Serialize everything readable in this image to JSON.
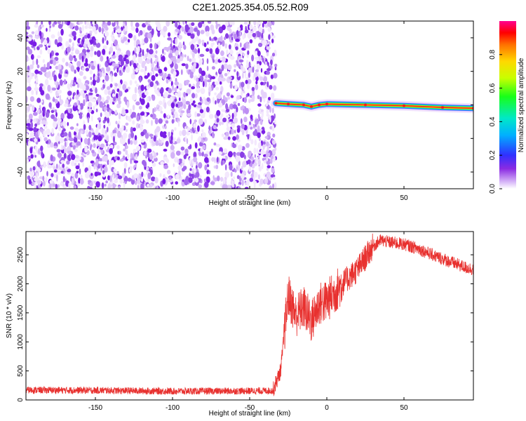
{
  "title": "C2E1.2025.354.05.52.R09",
  "chart_data": [
    {
      "type": "heatmap",
      "xlabel": "Height of straight line (km)",
      "ylabel": "Frequency (Hz)",
      "xlim": [
        -195,
        95
      ],
      "ylim": [
        -50,
        50
      ],
      "x_ticks": [
        -150,
        -100,
        -50,
        0,
        50
      ],
      "y_ticks": [
        -40,
        -20,
        0,
        20,
        40
      ],
      "noise_region_x": [
        -195,
        -33
      ],
      "signal_trace": [
        {
          "x": -33,
          "freq": 1.0
        },
        {
          "x": -25,
          "freq": 0.5
        },
        {
          "x": -15,
          "freq": 0.0
        },
        {
          "x": -10,
          "freq": -1.0
        },
        {
          "x": -5,
          "freq": 0.0
        },
        {
          "x": 0,
          "freq": 0.5
        },
        {
          "x": 25,
          "freq": 0.0
        },
        {
          "x": 50,
          "freq": -0.5
        },
        {
          "x": 75,
          "freq": -1.5
        },
        {
          "x": 95,
          "freq": -2.0
        }
      ],
      "colorbar": {
        "label": "Normalized spectral amplitude",
        "range": [
          0,
          1
        ],
        "ticks": [
          "0.0",
          "0.2",
          "0.4",
          "0.6",
          "0.8"
        ]
      }
    },
    {
      "type": "line",
      "xlabel": "Height of straight line (km)",
      "ylabel": "SNR (10 * v/v)",
      "xlim": [
        -195,
        95
      ],
      "ylim": [
        0,
        2900
      ],
      "x_ticks": [
        -150,
        -100,
        -50,
        0,
        50
      ],
      "y_ticks": [
        0,
        500,
        1000,
        1500,
        2000,
        2500
      ],
      "color": "#e8312f",
      "series": [
        {
          "x": [
            -195,
            -150,
            -100,
            -50,
            -35,
            -30,
            -25,
            -20,
            -15,
            -10,
            -5,
            0,
            10,
            20,
            30,
            35,
            40,
            50,
            60,
            70,
            80,
            90,
            95
          ],
          "y": [
            170,
            165,
            150,
            155,
            160,
            500,
            1800,
            1450,
            1600,
            1350,
            1650,
            1700,
            2000,
            2250,
            2650,
            2750,
            2720,
            2680,
            2600,
            2480,
            2380,
            2280,
            2250
          ]
        }
      ]
    }
  ]
}
